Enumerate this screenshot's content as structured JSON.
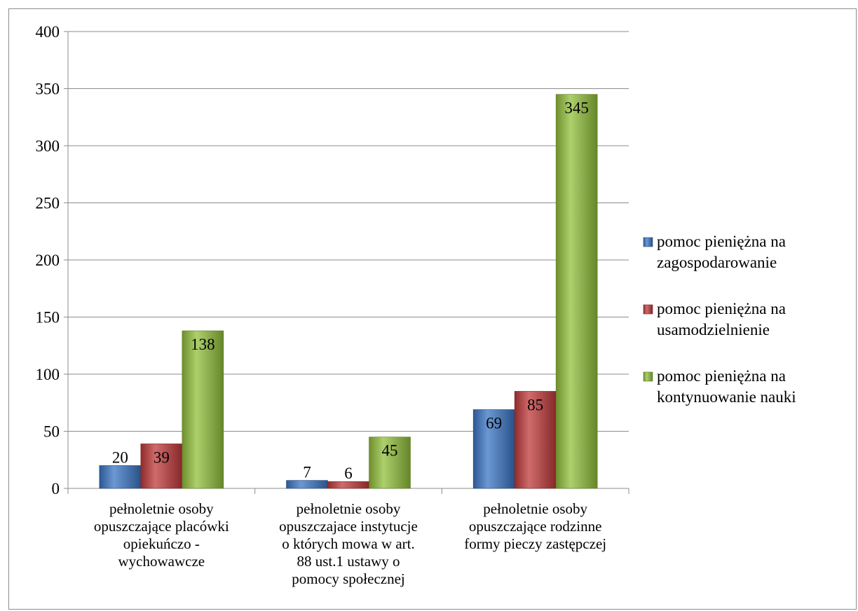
{
  "chart_data": {
    "type": "bar",
    "categories": [
      [
        "pełnoletnie osoby",
        "opuszczające placówki",
        "opiekuńczo -",
        "wychowawcze"
      ],
      [
        "pełnoletnie osoby",
        "opuszczajace instytucje",
        "o których mowa w art.",
        "88 ust.1 ustawy o",
        "pomocy społecznej"
      ],
      [
        "pełnoletnie osoby",
        "opuszczające rodzinne",
        "formy pieczy zastępczej"
      ]
    ],
    "series": [
      {
        "name": [
          "pomoc pieniężna na",
          "zagospodarowanie"
        ],
        "values": [
          20,
          7,
          69
        ],
        "color": "#3a75c4"
      },
      {
        "name": [
          "pomoc pieniężna na",
          "usamodzielnienie"
        ],
        "values": [
          39,
          6,
          85
        ],
        "color": "#c0393b"
      },
      {
        "name": [
          "pomoc pieniężna na",
          "kontynuowanie nauki"
        ],
        "values": [
          138,
          45,
          345
        ],
        "color": "#92bf3b"
      }
    ],
    "ylim": [
      0,
      400
    ],
    "yticks": [
      0,
      50,
      100,
      150,
      200,
      250,
      300,
      350,
      400
    ],
    "grid": true,
    "legend": "right",
    "title": "",
    "xlabel": "",
    "ylabel": ""
  }
}
